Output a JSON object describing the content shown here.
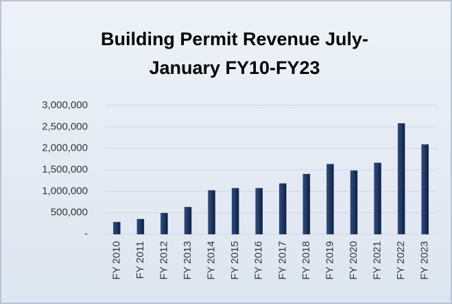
{
  "chart_data": {
    "type": "bar",
    "title": "Building Permit Revenue July-January FY10-FY23",
    "categories": [
      "FY 2010",
      "FY 2011",
      "FY 2012",
      "FY 2013",
      "FY 2014",
      "FY 2015",
      "FY 2016",
      "FY 2017",
      "FY 2018",
      "FY 2019",
      "FY 2020",
      "FY 2021",
      "FY 2022",
      "FY 2023"
    ],
    "values": [
      280000,
      350000,
      490000,
      630000,
      1020000,
      1070000,
      1070000,
      1180000,
      1400000,
      1630000,
      1480000,
      1660000,
      2580000,
      2090000
    ],
    "color": "#1f3864",
    "ylim": [
      0,
      3000000
    ],
    "yticks": [
      {
        "value": 0,
        "label": "-"
      },
      {
        "value": 500000,
        "label": "500,000"
      },
      {
        "value": 1000000,
        "label": "1,000,000"
      },
      {
        "value": 1500000,
        "label": "1,500,000"
      },
      {
        "value": 2000000,
        "label": "2,000,000"
      },
      {
        "value": 2500000,
        "label": "2,500,000"
      },
      {
        "value": 3000000,
        "label": "3,000,000"
      }
    ],
    "grid": true
  }
}
